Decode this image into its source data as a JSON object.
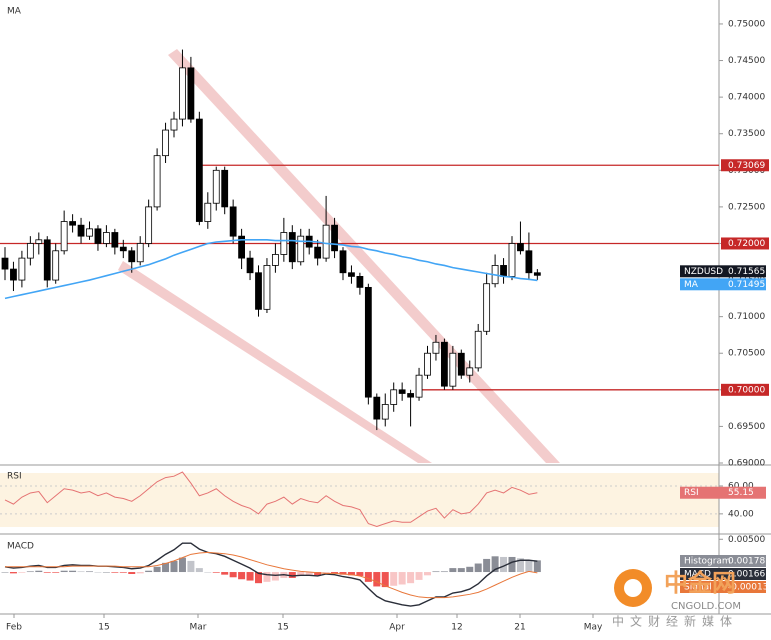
{
  "chart_data": {
    "type": "candlestick",
    "title": "MA",
    "symbol": "NZDUSD",
    "open": [
      0.718,
      0.7165,
      0.715,
      0.718,
      0.72,
      0.7205,
      0.715,
      0.719,
      0.723,
      0.7225,
      0.721,
      0.722,
      0.72,
      0.7215,
      0.7195,
      0.719,
      0.7175,
      0.72,
      0.725,
      0.732,
      0.7355,
      0.737,
      0.744,
      0.737,
      0.723,
      0.7255,
      0.73,
      0.725,
      0.721,
      0.718,
      0.716,
      0.711,
      0.717,
      0.7185,
      0.7215,
      0.7175,
      0.721,
      0.7195,
      0.718,
      0.7225,
      0.719,
      0.716,
      0.7155,
      0.714,
      0.699,
      0.696,
      0.698,
      0.7,
      0.6995,
      0.699,
      0.702,
      0.705,
      0.7065,
      0.7005,
      0.705,
      0.702,
      0.703,
      0.708,
      0.7145,
      0.717,
      0.7155,
      0.72,
      0.719,
      0.716
    ],
    "high": [
      0.7195,
      0.7175,
      0.719,
      0.721,
      0.7215,
      0.721,
      0.72,
      0.7245,
      0.724,
      0.7235,
      0.723,
      0.7225,
      0.7225,
      0.722,
      0.7205,
      0.7195,
      0.721,
      0.726,
      0.733,
      0.7365,
      0.738,
      0.7465,
      0.7455,
      0.738,
      0.727,
      0.7305,
      0.7305,
      0.726,
      0.722,
      0.719,
      0.717,
      0.718,
      0.72,
      0.7235,
      0.7225,
      0.722,
      0.722,
      0.7205,
      0.7265,
      0.7235,
      0.7195,
      0.717,
      0.716,
      0.7145,
      0.6995,
      0.6995,
      0.701,
      0.701,
      0.7,
      0.703,
      0.706,
      0.7075,
      0.707,
      0.706,
      0.7055,
      0.704,
      0.709,
      0.716,
      0.7185,
      0.718,
      0.721,
      0.723,
      0.7215,
      0.7165
    ],
    "low": [
      0.715,
      0.7135,
      0.714,
      0.717,
      0.7185,
      0.714,
      0.7145,
      0.7185,
      0.7215,
      0.72,
      0.7205,
      0.719,
      0.7195,
      0.7185,
      0.718,
      0.716,
      0.717,
      0.7195,
      0.7245,
      0.731,
      0.7345,
      0.736,
      0.7365,
      0.7225,
      0.722,
      0.7245,
      0.724,
      0.72,
      0.7165,
      0.715,
      0.71,
      0.7105,
      0.716,
      0.7175,
      0.7165,
      0.717,
      0.7185,
      0.717,
      0.7175,
      0.718,
      0.715,
      0.7145,
      0.713,
      0.698,
      0.6945,
      0.695,
      0.697,
      0.6985,
      0.695,
      0.6985,
      0.7015,
      0.704,
      0.7,
      0.7,
      0.7015,
      0.701,
      0.7025,
      0.7075,
      0.714,
      0.7145,
      0.715,
      0.7185,
      0.715,
      0.715
    ],
    "close": [
      0.7165,
      0.715,
      0.718,
      0.72,
      0.7205,
      0.715,
      0.719,
      0.723,
      0.7225,
      0.721,
      0.722,
      0.72,
      0.7215,
      0.7195,
      0.719,
      0.7175,
      0.72,
      0.725,
      0.732,
      0.7355,
      0.737,
      0.744,
      0.737,
      0.723,
      0.7255,
      0.73,
      0.725,
      0.721,
      0.718,
      0.716,
      0.711,
      0.717,
      0.7185,
      0.7215,
      0.7175,
      0.721,
      0.7195,
      0.718,
      0.7225,
      0.719,
      0.716,
      0.7155,
      0.714,
      0.699,
      0.696,
      0.698,
      0.7,
      0.6995,
      0.699,
      0.702,
      0.705,
      0.7065,
      0.7005,
      0.705,
      0.702,
      0.703,
      0.708,
      0.7145,
      0.717,
      0.7155,
      0.72,
      0.719,
      0.716,
      0.71565
    ],
    "ma": {
      "name": "MA",
      "color": "#42a5f5",
      "values": [
        0.7125,
        0.71275,
        0.713,
        0.71325,
        0.7135,
        0.71375,
        0.714,
        0.71425,
        0.7145,
        0.71475,
        0.715,
        0.7153,
        0.7156,
        0.7159,
        0.7162,
        0.7165,
        0.7168,
        0.7171,
        0.7175,
        0.7179,
        0.7184,
        0.7188,
        0.7192,
        0.7196,
        0.72,
        0.7202,
        0.7203,
        0.7204,
        0.7205,
        0.7205,
        0.7205,
        0.7205,
        0.7204,
        0.7204,
        0.7204,
        0.7203,
        0.7203,
        0.7202,
        0.72,
        0.7199,
        0.7198,
        0.7196,
        0.7195,
        0.7192,
        0.719,
        0.7187,
        0.7185,
        0.7182,
        0.718,
        0.7177,
        0.7175,
        0.7172,
        0.717,
        0.7167,
        0.7165,
        0.7163,
        0.7161,
        0.7159,
        0.7157,
        0.7155,
        0.7154,
        0.7152,
        0.7151,
        0.71495
      ]
    },
    "levels": [
      {
        "value": 0.73069,
        "label": "0.73069"
      },
      {
        "value": 0.72,
        "label": "0.72000"
      },
      {
        "value": 0.7,
        "label": "0.70000"
      }
    ],
    "ylim": [
      0.69,
      0.753
    ],
    "yticks": [
      {
        "value": 0.69,
        "label": "0.69000"
      },
      {
        "value": 0.695,
        "label": "0.69500"
      },
      {
        "value": 0.7,
        "label": "0.70000"
      },
      {
        "value": 0.705,
        "label": "0.70500"
      },
      {
        "value": 0.71,
        "label": "0.71000"
      },
      {
        "value": 0.715,
        "label": "0.71500"
      },
      {
        "value": 0.72,
        "label": "0.72000"
      },
      {
        "value": 0.725,
        "label": "0.72500"
      },
      {
        "value": 0.73,
        "label": "0.73000"
      },
      {
        "value": 0.735,
        "label": "0.73500"
      },
      {
        "value": 0.74,
        "label": "0.74000"
      },
      {
        "value": 0.745,
        "label": "0.74500"
      },
      {
        "value": 0.75,
        "label": "0.75000"
      }
    ],
    "x_labels": [
      "Feb",
      "15",
      "Mar",
      "15",
      "Apr",
      "12",
      "21",
      "May"
    ],
    "rsi": {
      "title": "RSI",
      "name": "RSI",
      "color": "#e57373",
      "ylim": [
        27,
        73.6
      ],
      "yticks": [
        {
          "value": 40,
          "label": "40.00"
        },
        {
          "value": 60,
          "label": "60.00"
        }
      ],
      "values": [
        50,
        47,
        52,
        55,
        56,
        48,
        53,
        58,
        57,
        55,
        56,
        53,
        55,
        52,
        51,
        49,
        53,
        58,
        63,
        66,
        67,
        70,
        62,
        53,
        55,
        58,
        53,
        49,
        46,
        44,
        40,
        47,
        49,
        52,
        47,
        51,
        49,
        48,
        53,
        49,
        46,
        45,
        43,
        33,
        31,
        33,
        35,
        34,
        34,
        38,
        42,
        44,
        37,
        43,
        40,
        41,
        47,
        55,
        57,
        55,
        59,
        57,
        54,
        55.15
      ]
    },
    "macd": {
      "title": "MACD",
      "ylim": [
        -0.0061,
        0.0055
      ],
      "yticks": [
        {
          "value": 0.005,
          "label": "0.00500"
        }
      ],
      "histogram": {
        "name": "Histogram",
        "values": [
          0,
          -0.0002,
          -0.0001,
          0.0001,
          0.0002,
          -0.0001,
          -0.0001,
          0.0002,
          0.0002,
          0.0001,
          0.0001,
          0,
          0,
          -0.0001,
          -0.0001,
          -0.0003,
          -0.0002,
          0.0002,
          0.0008,
          0.0014,
          0.0017,
          0.0022,
          0.0017,
          0.0006,
          0,
          -0.0001,
          -0.0004,
          -0.0008,
          -0.0011,
          -0.0013,
          -0.0017,
          -0.0015,
          -0.0013,
          -0.0009,
          -0.0009,
          -0.0006,
          -0.0005,
          -0.0005,
          -0.0001,
          -0.0002,
          -0.0004,
          -0.0005,
          -0.0006,
          -0.0015,
          -0.0022,
          -0.0023,
          -0.0021,
          -0.0019,
          -0.0017,
          -0.0012,
          -0.0005,
          0.0001,
          0.0001,
          0.0006,
          0.0006,
          0.0008,
          0.0013,
          0.002,
          0.0024,
          0.0023,
          0.0023,
          0.0021,
          0.0017,
          0.00178
        ]
      },
      "macd": {
        "name": "MACD",
        "color": "#2a2e39",
        "values": [
          0.0008,
          0.0006,
          0.0007,
          0.0009,
          0.001,
          0.0007,
          0.0007,
          0.001,
          0.0011,
          0.001,
          0.001,
          0.0009,
          0.0009,
          0.0008,
          0.0007,
          0.0005,
          0.0006,
          0.001,
          0.0018,
          0.0027,
          0.0034,
          0.0044,
          0.0044,
          0.0035,
          0.003,
          0.0028,
          0.0024,
          0.0018,
          0.0012,
          0.0006,
          -0.0002,
          -0.0004,
          -0.0005,
          -0.0004,
          -0.0006,
          -0.0005,
          -0.0005,
          -0.0006,
          -0.0003,
          -0.0004,
          -0.0007,
          -0.0009,
          -0.0012,
          -0.0025,
          -0.0037,
          -0.0044,
          -0.0047,
          -0.005,
          -0.0052,
          -0.005,
          -0.0044,
          -0.0038,
          -0.0038,
          -0.0032,
          -0.003,
          -0.0026,
          -0.0018,
          -0.0006,
          0.0004,
          0.0009,
          0.0015,
          0.0018,
          0.0018,
          0.00166
        ]
      },
      "signal": {
        "name": "Signal",
        "color": "#e8773a",
        "values": [
          0.0008,
          0.0008,
          0.0008,
          0.0008,
          0.0008,
          0.0008,
          0.0008,
          0.0008,
          0.0009,
          0.0009,
          0.0009,
          0.0009,
          0.0009,
          0.0009,
          0.0008,
          0.0008,
          0.0008,
          0.0008,
          0.001,
          0.0013,
          0.0017,
          0.0022,
          0.0027,
          0.0029,
          0.003,
          0.0029,
          0.0028,
          0.0026,
          0.0023,
          0.0019,
          0.0015,
          0.0011,
          0.0008,
          0.0005,
          0.0003,
          0.0001,
          0,
          -0.0001,
          -0.0002,
          -0.0002,
          -0.0003,
          -0.0004,
          -0.0006,
          -0.001,
          -0.0015,
          -0.0021,
          -0.0026,
          -0.0031,
          -0.0035,
          -0.0038,
          -0.0039,
          -0.0039,
          -0.0039,
          -0.0038,
          -0.0036,
          -0.0034,
          -0.0031,
          -0.0026,
          -0.002,
          -0.0014,
          -0.0008,
          -0.0003,
          0.0001,
          -0.00013
        ]
      }
    },
    "watermark": {
      "brand": "中金网",
      "site": "CNGOLD.COM",
      "slogan": "中文财经新媒体"
    }
  }
}
